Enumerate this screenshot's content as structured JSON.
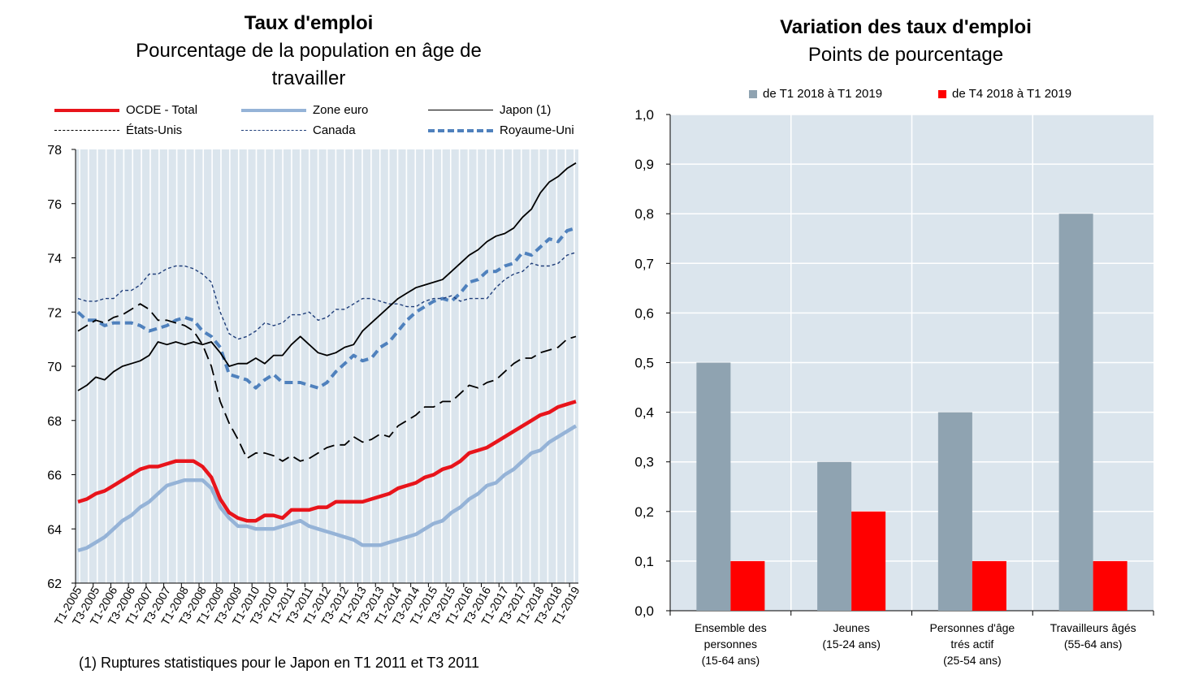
{
  "chart_data": [
    {
      "type": "line",
      "title": "Taux d'emploi",
      "subtitle_line1": "Pourcentage de la population en âge de",
      "subtitle_line2": "travailler",
      "ylim": [
        62,
        78
      ],
      "y_ticks": [
        "62",
        "64",
        "66",
        "68",
        "70",
        "72",
        "74",
        "76",
        "78"
      ],
      "x_tick_labels": [
        "T1-2005",
        "T3-2005",
        "T1-2006",
        "T3-2006",
        "T1-2007",
        "T3-2007",
        "T1-2008",
        "T3-2008",
        "T1-2009",
        "T3-2009",
        "T1-2010",
        "T3-2010",
        "T1-2011",
        "T3-2011",
        "T1-2012",
        "T3-2012",
        "T1-2013",
        "T3-2013",
        "T1-2014",
        "T3-2014",
        "T1-2015",
        "T3-2015",
        "T1-2016",
        "T3-2016",
        "T1-2017",
        "T3-2017",
        "T1-2018",
        "T3-2018",
        "T1-2019"
      ],
      "legend_placement": "top",
      "footnote": "(1) Ruptures statistiques pour le Japon en T1 2011 et T3 2011",
      "series": [
        {
          "name": "OCDE - Total",
          "color": "#e8141b",
          "style": "solid-thick",
          "values": [
            65.0,
            65.1,
            65.3,
            65.4,
            65.6,
            65.8,
            66.0,
            66.2,
            66.3,
            66.3,
            66.4,
            66.5,
            66.5,
            66.5,
            66.3,
            65.9,
            65.1,
            64.6,
            64.4,
            64.3,
            64.3,
            64.5,
            64.5,
            64.4,
            64.7,
            64.7,
            64.7,
            64.8,
            64.8,
            65.0,
            65.0,
            65.0,
            65.0,
            65.1,
            65.2,
            65.3,
            65.5,
            65.6,
            65.7,
            65.9,
            66.0,
            66.2,
            66.3,
            66.5,
            66.8,
            66.9,
            67.0,
            67.2,
            67.4,
            67.6,
            67.8,
            68.0,
            68.2,
            68.3,
            68.5,
            68.6,
            68.7
          ]
        },
        {
          "name": "Zone euro",
          "color": "#95b3d7",
          "style": "solid-thick",
          "values": [
            63.2,
            63.3,
            63.5,
            63.7,
            64.0,
            64.3,
            64.5,
            64.8,
            65.0,
            65.3,
            65.6,
            65.7,
            65.8,
            65.8,
            65.8,
            65.5,
            64.8,
            64.4,
            64.1,
            64.1,
            64.0,
            64.0,
            64.0,
            64.1,
            64.2,
            64.3,
            64.1,
            64.0,
            63.9,
            63.8,
            63.7,
            63.6,
            63.4,
            63.4,
            63.4,
            63.5,
            63.6,
            63.7,
            63.8,
            64.0,
            64.2,
            64.3,
            64.6,
            64.8,
            65.1,
            65.3,
            65.6,
            65.7,
            66.0,
            66.2,
            66.5,
            66.8,
            66.9,
            67.2,
            67.4,
            67.6,
            67.8
          ]
        },
        {
          "name": "Japon (1)",
          "color": "#000000",
          "style": "solid-thin",
          "values": [
            69.1,
            69.3,
            69.6,
            69.5,
            69.8,
            70.0,
            70.1,
            70.2,
            70.4,
            70.9,
            70.8,
            70.9,
            70.8,
            70.9,
            70.8,
            70.9,
            70.5,
            70.0,
            70.1,
            70.1,
            70.3,
            70.1,
            70.4,
            70.4,
            70.8,
            71.1,
            70.8,
            70.5,
            70.4,
            70.5,
            70.7,
            70.8,
            71.3,
            71.6,
            71.9,
            72.2,
            72.5,
            72.7,
            72.9,
            73.0,
            73.1,
            73.2,
            73.5,
            73.8,
            74.1,
            74.3,
            74.6,
            74.8,
            74.9,
            75.1,
            75.5,
            75.8,
            76.4,
            76.8,
            77.0,
            77.3,
            77.5
          ]
        },
        {
          "name": "États-Unis",
          "color": "#000000",
          "style": "long-dash",
          "values": [
            71.3,
            71.5,
            71.7,
            71.6,
            71.8,
            71.9,
            72.1,
            72.3,
            72.1,
            71.7,
            71.7,
            71.6,
            71.5,
            71.3,
            70.8,
            70.0,
            68.7,
            67.9,
            67.3,
            66.6,
            66.8,
            66.8,
            66.7,
            66.5,
            66.7,
            66.5,
            66.6,
            66.8,
            67.0,
            67.1,
            67.1,
            67.4,
            67.2,
            67.3,
            67.5,
            67.4,
            67.8,
            68.0,
            68.2,
            68.5,
            68.5,
            68.7,
            68.7,
            69.0,
            69.3,
            69.2,
            69.4,
            69.5,
            69.8,
            70.1,
            70.3,
            70.3,
            70.5,
            70.6,
            70.7,
            71.0,
            71.1
          ]
        },
        {
          "name": "Canada",
          "color": "#1f3e7a",
          "style": "short-dash",
          "values": [
            72.5,
            72.4,
            72.4,
            72.5,
            72.5,
            72.8,
            72.8,
            73.0,
            73.4,
            73.4,
            73.6,
            73.7,
            73.7,
            73.6,
            73.4,
            73.1,
            72.0,
            71.2,
            71.0,
            71.1,
            71.3,
            71.6,
            71.5,
            71.6,
            71.9,
            71.9,
            72.0,
            71.7,
            71.8,
            72.1,
            72.1,
            72.3,
            72.5,
            72.5,
            72.4,
            72.3,
            72.3,
            72.2,
            72.2,
            72.4,
            72.5,
            72.5,
            72.6,
            72.4,
            72.5,
            72.5,
            72.5,
            72.9,
            73.2,
            73.4,
            73.5,
            73.8,
            73.7,
            73.7,
            73.8,
            74.1,
            74.2
          ]
        },
        {
          "name": "Royaume-Uni",
          "color": "#4f81bd",
          "style": "dash-thick",
          "values": [
            72.0,
            71.7,
            71.7,
            71.5,
            71.6,
            71.6,
            71.6,
            71.5,
            71.3,
            71.4,
            71.5,
            71.7,
            71.8,
            71.7,
            71.3,
            71.1,
            70.7,
            69.7,
            69.6,
            69.5,
            69.2,
            69.5,
            69.7,
            69.4,
            69.4,
            69.4,
            69.3,
            69.2,
            69.4,
            69.8,
            70.1,
            70.4,
            70.2,
            70.3,
            70.7,
            70.9,
            71.3,
            71.7,
            72.0,
            72.2,
            72.4,
            72.5,
            72.4,
            72.7,
            73.1,
            73.2,
            73.5,
            73.5,
            73.7,
            73.8,
            74.2,
            74.1,
            74.4,
            74.7,
            74.6,
            75.0,
            75.1
          ]
        }
      ]
    },
    {
      "type": "bar",
      "title": "Variation des taux d'emploi",
      "subtitle": "Points de pourcentage",
      "ylim": [
        0,
        1.0
      ],
      "y_ticks": [
        "0,0",
        "0,1",
        "0,2",
        "0,3",
        "0,4",
        "0,5",
        "0,6",
        "0,7",
        "0,8",
        "0,9",
        "1,0"
      ],
      "categories": [
        [
          "Ensemble des",
          "personnes",
          "(15-64 ans)"
        ],
        [
          "Jeunes",
          "(15-24 ans)"
        ],
        [
          "Personnes d'âge",
          "trés actif",
          "(25-54 ans)"
        ],
        [
          "Travailleurs âgés",
          "(55-64 ans)"
        ]
      ],
      "legend_placement": "top",
      "series": [
        {
          "name": "de T1 2018 à T1 2019",
          "color": "#8fa3b1",
          "values": [
            0.5,
            0.3,
            0.4,
            0.8
          ]
        },
        {
          "name": "de T4 2018 à T1 2019",
          "color": "#ff0000",
          "values": [
            0.1,
            0.2,
            0.1,
            0.1
          ]
        }
      ]
    }
  ]
}
